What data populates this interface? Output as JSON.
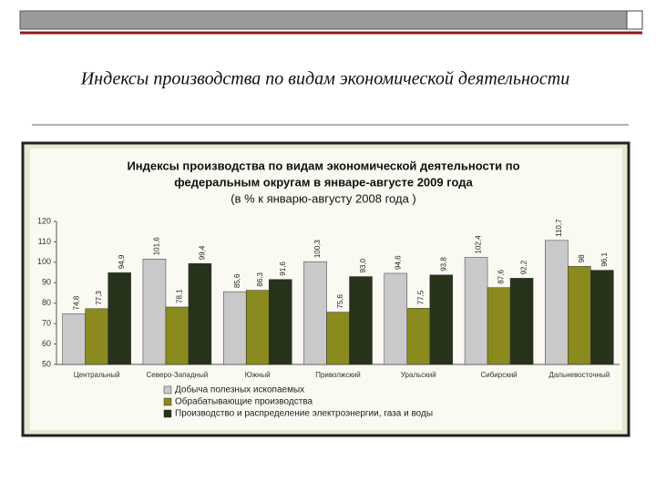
{
  "slide_title": "Индексы производства по видам экономической деятельности",
  "chart_data": {
    "type": "bar",
    "title": [
      "Индексы производства по видам экономической деятельности по",
      "федеральным округам в январе-августе 2009 года",
      "(в % к январю-августу 2008 года )"
    ],
    "categories": [
      "Центральный",
      "Северо-Западный",
      "Южный",
      "Приволжский",
      "Уральский",
      "Сибирский",
      "Дальневосточный"
    ],
    "series": [
      {
        "name": "Добыча полезных ископаемых",
        "color": "#c9c9c9",
        "values": [
          74.8,
          101.6,
          85.6,
          100.3,
          94.6,
          102.4,
          110.7
        ],
        "value_labels": [
          "74,8",
          "101,6",
          "85,6",
          "100,3",
          "94,6",
          "102,4",
          "110,7"
        ]
      },
      {
        "name": "Обрабатывающие производства",
        "color": "#8a8a1e",
        "values": [
          77.3,
          78.1,
          86.3,
          75.6,
          77.5,
          87.6,
          98
        ],
        "value_labels": [
          "77,3",
          "78,1",
          "86,3",
          "75,6",
          "77,5",
          "87,6",
          "98"
        ]
      },
      {
        "name": "Производство и распределение электроэнергии, газа и воды",
        "color": "#26321a",
        "values": [
          94.9,
          99.4,
          91.6,
          93.0,
          93.8,
          92.2,
          96.1
        ],
        "value_labels": [
          "94,9",
          "99,4",
          "91,6",
          "93,0",
          "93,8",
          "92,2",
          "96,1"
        ]
      }
    ],
    "ylim": [
      50,
      120
    ],
    "yticks": [
      50,
      60,
      70,
      80,
      90,
      100,
      110,
      120
    ],
    "grid": false,
    "legend": "bottom"
  }
}
